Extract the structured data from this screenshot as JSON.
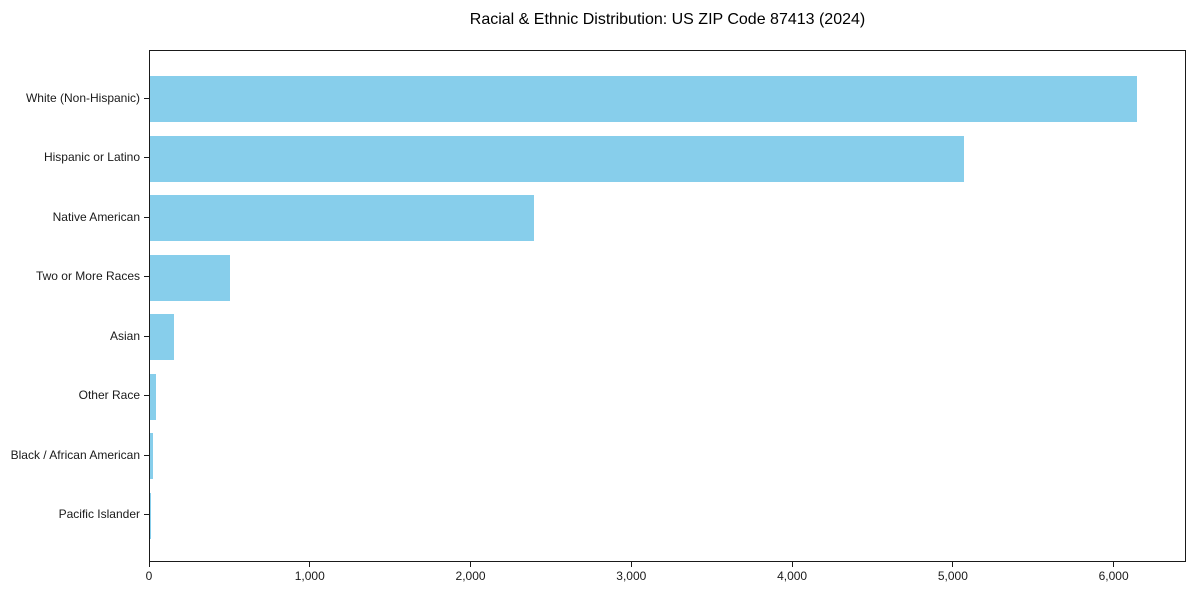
{
  "title": "Racial & Ethnic Distribution: US ZIP Code 87413 (2024)",
  "chart_data": {
    "type": "bar",
    "orientation": "horizontal",
    "title": "Racial & Ethnic Distribution: US ZIP Code 87413 (2024)",
    "categories": [
      "White (Non-Hispanic)",
      "Hispanic or Latino",
      "Native American",
      "Two or More Races",
      "Asian",
      "Other Race",
      "Black / African American",
      "Pacific Islander"
    ],
    "values": [
      6140,
      5060,
      2390,
      500,
      150,
      35,
      18,
      4
    ],
    "xlabel": "",
    "ylabel": "",
    "xlim": [
      0,
      6450
    ],
    "xticks": [
      0,
      1000,
      2000,
      3000,
      4000,
      5000,
      6000
    ],
    "xtick_labels": [
      "0",
      "1,000",
      "2,000",
      "3,000",
      "4,000",
      "5,000",
      "6,000"
    ],
    "grid": false,
    "legend": "none",
    "bar_color": "#87CEEB",
    "axis_color": "#1a1a1a",
    "background_color": "#ffffff"
  }
}
